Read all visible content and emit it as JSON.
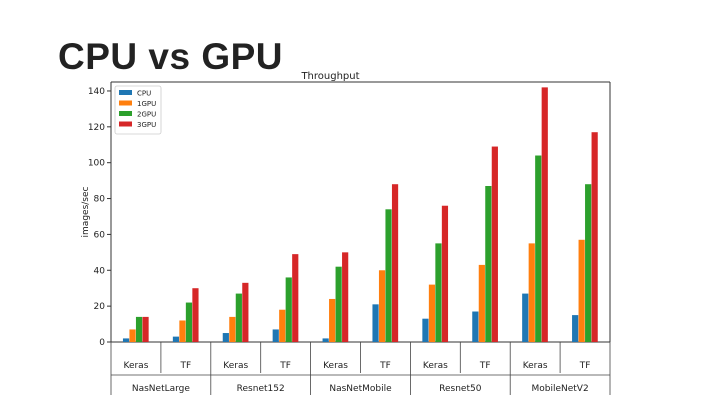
{
  "slide": {
    "title": "CPU vs GPU"
  },
  "chart_data": {
    "type": "bar",
    "title": "Throughput",
    "xlabel": "",
    "ylabel": "images/sec",
    "ylim": [
      0,
      145
    ],
    "yticks": [
      0,
      20,
      40,
      60,
      80,
      100,
      120,
      140
    ],
    "grid": false,
    "legend_position": "top-left",
    "categories": [
      "Keras",
      "TF",
      "Keras",
      "TF",
      "Keras",
      "TF",
      "Keras",
      "TF",
      "Keras",
      "TF"
    ],
    "groups": [
      "NasNetLarge",
      "Resnet152",
      "NasNetMobile",
      "Resnet50",
      "MobileNetV2"
    ],
    "series": [
      {
        "name": "CPU",
        "color": "#1f77b4",
        "values": [
          2,
          3,
          5,
          7,
          2,
          21,
          13,
          17,
          27,
          15
        ]
      },
      {
        "name": "1GPU",
        "color": "#ff7f0e",
        "values": [
          7,
          12,
          14,
          18,
          24,
          40,
          32,
          43,
          55,
          57
        ]
      },
      {
        "name": "2GPU",
        "color": "#2ca02c",
        "values": [
          14,
          22,
          27,
          36,
          42,
          74,
          55,
          87,
          104,
          88
        ]
      },
      {
        "name": "3GPU",
        "color": "#d62728",
        "values": [
          14,
          30,
          33,
          49,
          50,
          88,
          76,
          109,
          142,
          117
        ]
      }
    ]
  }
}
